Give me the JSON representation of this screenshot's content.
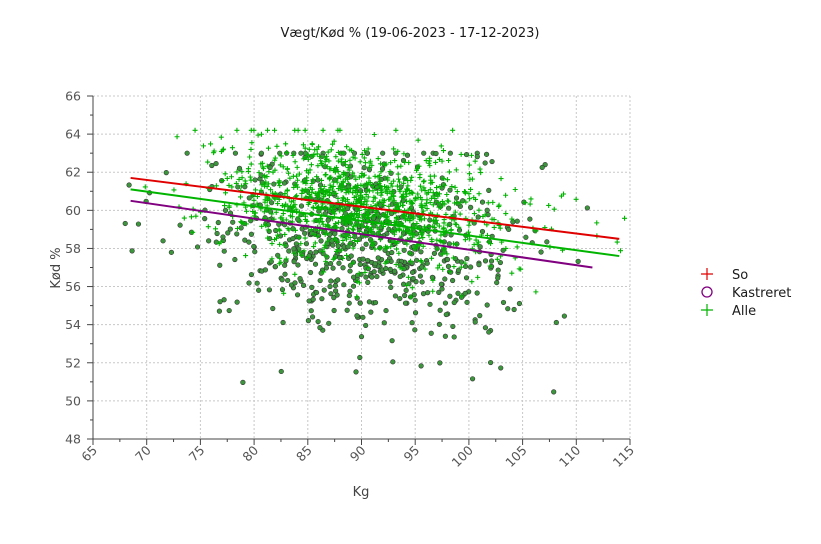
{
  "chart_data": {
    "type": "scatter",
    "title": "Vægt/Kød % (19-06-2023 - 17-12-2023)",
    "xlabel": "Kg",
    "ylabel": "Kød %",
    "xlim": [
      65,
      115
    ],
    "ylim": [
      48,
      66
    ],
    "x_ticks": [
      65,
      70,
      75,
      80,
      85,
      90,
      95,
      100,
      105,
      110,
      115
    ],
    "y_ticks": [
      48,
      50,
      52,
      54,
      56,
      58,
      60,
      62,
      64,
      66
    ],
    "grid": true,
    "legend_position": "right",
    "series": [
      {
        "name": "So",
        "marker": "plus",
        "color": "#e00000",
        "regression": {
          "x": [
            68.5,
            114.0
          ],
          "y": [
            61.7,
            58.5
          ]
        }
      },
      {
        "name": "Kastreret",
        "marker": "circle",
        "color": "#800080",
        "fill": "#3c963c",
        "regression": {
          "x": [
            68.5,
            111.5
          ],
          "y": [
            60.5,
            57.0
          ]
        }
      },
      {
        "name": "Alle",
        "marker": "plus",
        "color": "#00b400",
        "regression": {
          "x": [
            68.5,
            114.0
          ],
          "y": [
            61.1,
            57.6
          ]
        }
      }
    ],
    "point_clouds": [
      {
        "series": "Kastreret",
        "count": 700,
        "x_center": 90,
        "x_spread": 7.5,
        "y_center": 58.2,
        "y_spread": 2.4,
        "x_range": [
          68,
          112
        ],
        "y_range": [
          48.5,
          63
        ]
      },
      {
        "series": "Alle",
        "count": 1100,
        "x_center": 90,
        "x_spread": 7,
        "y_center": 60.3,
        "y_spread": 1.5,
        "x_range": [
          68,
          114.5
        ],
        "y_range": [
          52,
          64.2
        ]
      }
    ]
  }
}
